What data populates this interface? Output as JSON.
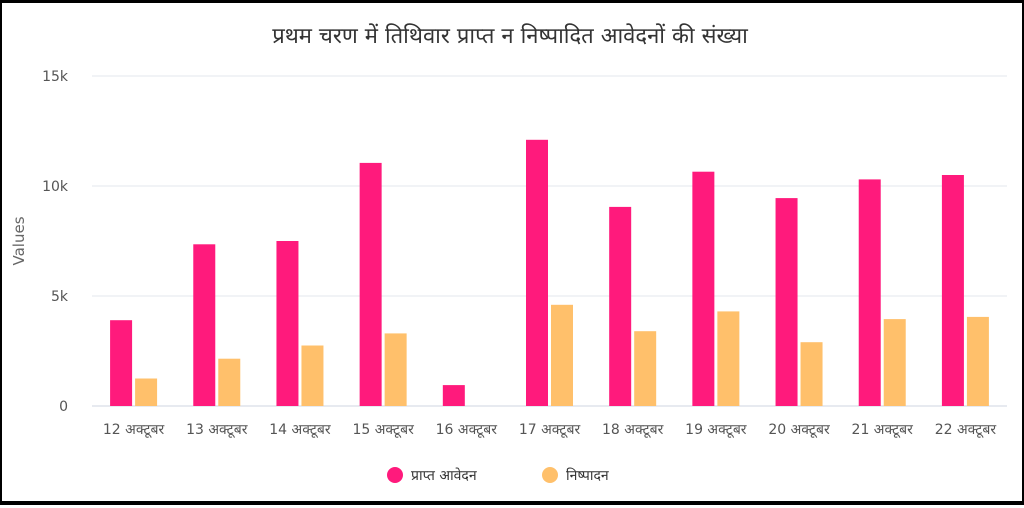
{
  "chart_data": {
    "type": "bar",
    "title": "प्रथम चरण में तिथिवार प्राप्त न निष्पादित आवेदनों की संख्या",
    "ylabel": "Values",
    "xlabel": "",
    "ylim": [
      0,
      15000
    ],
    "yticks": [
      {
        "value": 0,
        "label": "0"
      },
      {
        "value": 5000,
        "label": "5k"
      },
      {
        "value": 10000,
        "label": "10k"
      },
      {
        "value": 15000,
        "label": "15k"
      }
    ],
    "grid": true,
    "legend_position": "bottom",
    "categories": [
      "12 अक्टूबर",
      "13 अक्टूबर",
      "14 अक्टूबर",
      "15 अक्टूबर",
      "16 अक्टूबर",
      "17 अक्टूबर",
      "18 अक्टूबर",
      "19 अक्टूबर",
      "20 अक्टूबर",
      "21 अक्टूबर",
      "22 अक्टूबर"
    ],
    "series": [
      {
        "name": "प्राप्त आवेदन",
        "color": "#ff1a7c",
        "values": [
          3900,
          7350,
          7500,
          11050,
          950,
          12100,
          9050,
          10650,
          9450,
          10300,
          10500
        ]
      },
      {
        "name": "निष्पादन",
        "color": "#ffc06b",
        "values": [
          1250,
          2150,
          2750,
          3300,
          0,
          4600,
          3400,
          4300,
          2900,
          3950,
          4050
        ]
      }
    ]
  }
}
